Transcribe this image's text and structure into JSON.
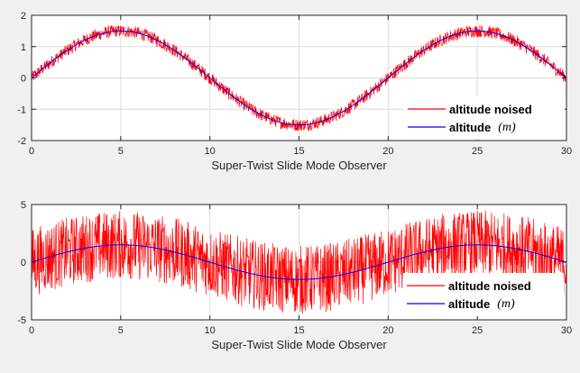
{
  "chart_data": [
    {
      "type": "line",
      "x": {
        "min": 0,
        "max": 30,
        "ticks": [
          0,
          5,
          10,
          15,
          20,
          25,
          30
        ]
      },
      "y": {
        "min": -2,
        "max": 2,
        "ticks": [
          -2,
          -1,
          0,
          1,
          2
        ]
      },
      "xlabel": "Super-Twist Slide Mode Observer",
      "ylabel": "",
      "grid": true,
      "legend_position": "bottom-right",
      "legend_unit": "(m)",
      "series": [
        {
          "name": "altitude noised",
          "color": "#ff0000",
          "function": "1.5*sin(2*pi*t/20)",
          "noise_amplitude": 0.2
        },
        {
          "name": "altitude",
          "color": "#0000ff",
          "function": "1.5*sin(2*pi*t/20)",
          "noise_amplitude": 0
        }
      ]
    },
    {
      "type": "line",
      "x": {
        "min": 0,
        "max": 30,
        "ticks": [
          0,
          5,
          10,
          15,
          20,
          25,
          30
        ]
      },
      "y": {
        "min": -5,
        "max": 5,
        "ticks": [
          -5,
          0,
          5
        ]
      },
      "xlabel": "Super-Twist Slide Mode Observer",
      "ylabel": "",
      "grid": true,
      "legend_position": "bottom-right",
      "legend_unit": "(m)",
      "series": [
        {
          "name": "altitude noised",
          "color": "#ff0000",
          "function": "1.5*sin(2*pi*t/20)",
          "noise_amplitude": 3.0
        },
        {
          "name": "altitude",
          "color": "#0000ff",
          "function": "1.5*sin(2*pi*t/20)",
          "noise_amplitude": 0
        }
      ]
    }
  ]
}
